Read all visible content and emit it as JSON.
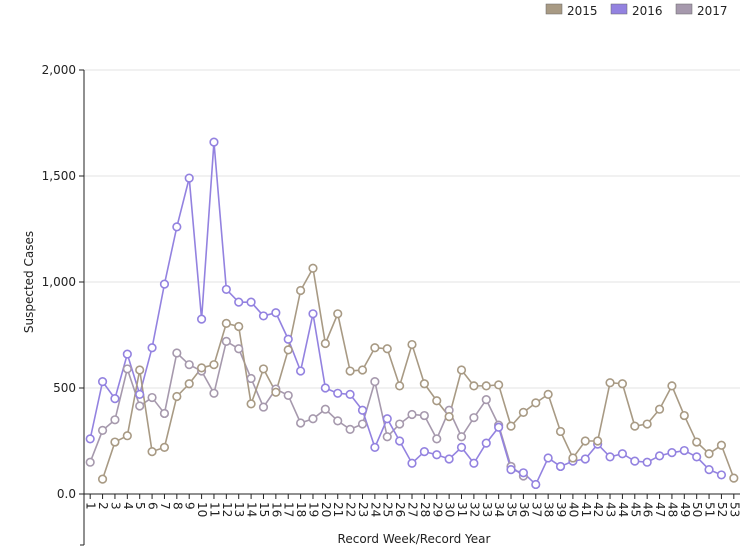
{
  "chart_data": {
    "type": "line",
    "xlabel": "Record Week/Record Year",
    "ylabel": "Suspected Cases",
    "ylim": [
      0,
      2000
    ],
    "yticks": [
      0,
      500,
      1000,
      1500,
      2000
    ],
    "ytick_labels": [
      "0.0",
      "500",
      "1,000",
      "1,500",
      "2,000"
    ],
    "x": [
      1,
      2,
      3,
      4,
      5,
      6,
      7,
      8,
      9,
      10,
      11,
      12,
      13,
      14,
      15,
      16,
      17,
      18,
      19,
      20,
      21,
      22,
      23,
      24,
      25,
      26,
      27,
      28,
      29,
      30,
      31,
      32,
      33,
      34,
      35,
      36,
      37,
      38,
      39,
      40,
      41,
      42,
      43,
      44,
      45,
      46,
      47,
      48,
      49,
      50,
      51,
      52,
      53
    ],
    "legend_position": "top-right",
    "grid": true,
    "series": [
      {
        "name": "2015",
        "color": "#a89a84",
        "values": [
          null,
          70,
          245,
          275,
          585,
          200,
          220,
          460,
          520,
          595,
          610,
          805,
          790,
          425,
          590,
          480,
          680,
          960,
          1065,
          710,
          850,
          580,
          585,
          690,
          685,
          510,
          705,
          520,
          440,
          365,
          585,
          510,
          510,
          515,
          320,
          385,
          430,
          470,
          295,
          170,
          250,
          250,
          525,
          520,
          320,
          330,
          400,
          510,
          370,
          245,
          190,
          230,
          75
        ]
      },
      {
        "name": "2016",
        "color": "#9382e0",
        "values": [
          260,
          530,
          450,
          660,
          470,
          690,
          990,
          1260,
          1490,
          825,
          1660,
          965,
          905,
          905,
          840,
          855,
          730,
          580,
          850,
          500,
          475,
          470,
          395,
          220,
          355,
          250,
          145,
          200,
          185,
          165,
          220,
          145,
          240,
          315,
          115,
          100,
          45,
          170,
          130,
          155,
          165,
          235,
          175,
          190,
          155,
          150,
          180,
          195,
          205,
          175,
          115,
          90,
          null
        ]
      },
      {
        "name": "2017",
        "color": "#a699ad",
        "values": [
          150,
          300,
          350,
          590,
          415,
          455,
          380,
          665,
          610,
          580,
          475,
          720,
          685,
          545,
          410,
          495,
          465,
          335,
          355,
          400,
          345,
          305,
          330,
          530,
          270,
          330,
          375,
          370,
          260,
          395,
          270,
          360,
          445,
          325,
          130,
          85,
          null,
          null,
          null,
          null,
          null,
          null,
          null,
          null,
          null,
          null,
          null,
          null,
          null,
          null,
          null,
          null,
          null
        ]
      }
    ]
  }
}
